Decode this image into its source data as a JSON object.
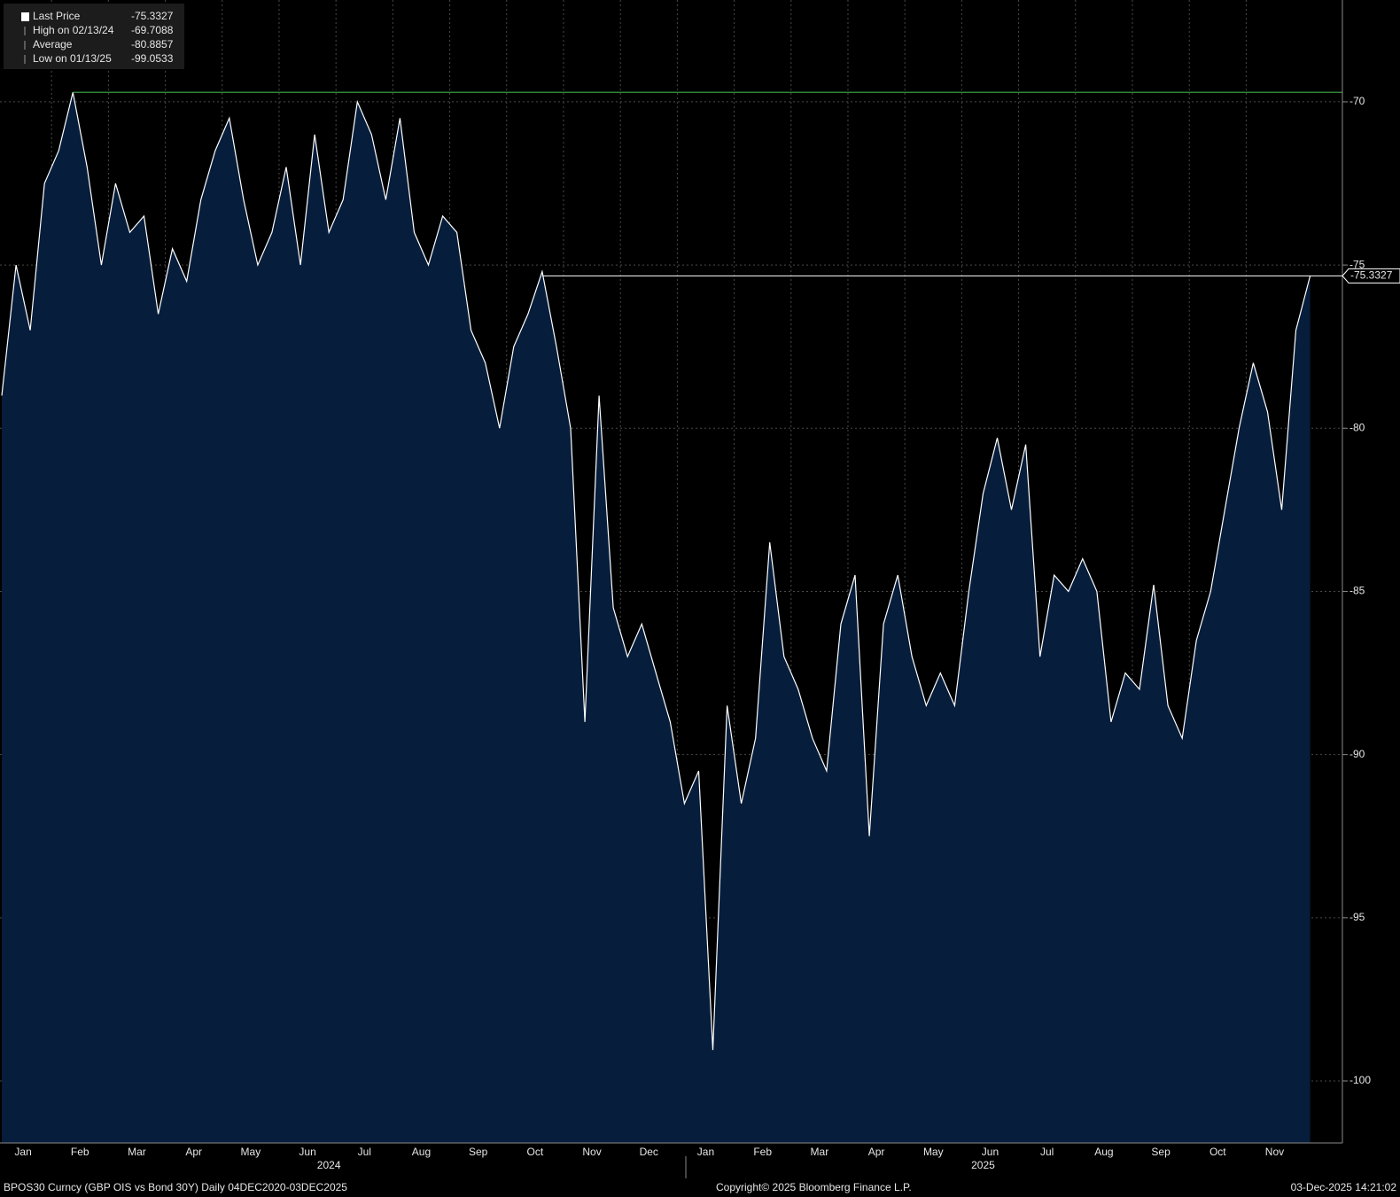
{
  "chart_data": {
    "type": "area",
    "footer_left": "BPOS30 Curncy (GBP OIS vs Bond 30Y) Daily 04DEC2020-03DEC2025",
    "copyright": "Copyright© 2025 Bloomberg Finance L.P.",
    "timestamp": "03-Dec-2025 14:21:02",
    "categories": [
      null,
      "Jan",
      null,
      null,
      null,
      "Feb",
      null,
      null,
      null,
      "Mar",
      null,
      null,
      null,
      "Apr",
      null,
      null,
      null,
      "May",
      null,
      null,
      null,
      "Jun",
      null,
      null,
      null,
      "Jul",
      null,
      null,
      null,
      "Aug",
      null,
      null,
      null,
      "Sep",
      null,
      null,
      null,
      "Oct",
      null,
      null,
      null,
      "Nov",
      null,
      null,
      null,
      "Dec",
      null,
      null,
      null,
      "Jan",
      null,
      null,
      null,
      "Feb",
      null,
      null,
      null,
      "Mar",
      null,
      null,
      null,
      "Apr",
      null,
      null,
      null,
      "May",
      null,
      null,
      null,
      "Jun",
      null,
      null,
      null,
      "Jul",
      null,
      null,
      null,
      "Aug",
      null,
      null,
      null,
      "Sep",
      null,
      null,
      null,
      "Oct",
      null,
      null,
      null,
      "Nov",
      null,
      null,
      null
    ],
    "years": [
      "2024",
      "2025"
    ],
    "series": [
      {
        "name": "Last Price",
        "color": "#ffffff",
        "values": [
          -79,
          -75,
          -77,
          -72.5,
          -71.5,
          -69.7088,
          -72,
          -75,
          -72.5,
          -74,
          -73.5,
          -76.5,
          -74.5,
          -75.5,
          -73,
          -71.5,
          -70.5,
          -73,
          -75,
          -74,
          -72,
          -75,
          -71,
          -74,
          -73,
          -70,
          -71,
          -73,
          -70.5,
          -74,
          -75,
          -73.5,
          -74,
          -77,
          -78,
          -80,
          -77.5,
          -76.5,
          -75.2,
          -77.5,
          -80,
          -89,
          -79,
          -85.5,
          -87,
          -86,
          -87.5,
          -89,
          -91.5,
          -90.5,
          -99.0533,
          -88.5,
          -91.5,
          -89.5,
          -83.5,
          -87,
          -88,
          -89.5,
          -90.5,
          -86,
          -84.5,
          -92.5,
          -86,
          -84.5,
          -87,
          -88.5,
          -87.5,
          -88.5,
          -85,
          -82,
          -80.3,
          -82.5,
          -80.5,
          -87,
          -84.5,
          -85,
          -84,
          -85,
          -89,
          -87.5,
          -88,
          -84.8,
          -88.5,
          -89.5,
          -86.5,
          -85,
          -82.5,
          -80,
          -78,
          -79.5,
          -82.5,
          -77,
          -75.3327
        ]
      }
    ],
    "stats": [
      {
        "label": "High on 02/13/24",
        "value": -69.7088
      },
      {
        "label": "Average",
        "value": -80.8857
      },
      {
        "label": "Low on 01/13/25",
        "value": -99.0533
      }
    ],
    "fill_color": "#061d3c",
    "high_color": "#3fae49",
    "ylim": [
      -101.9,
      -66.88
    ],
    "yticks": [
      -70,
      -75,
      -80,
      -85,
      -90,
      -95,
      -100
    ],
    "grid": true
  }
}
